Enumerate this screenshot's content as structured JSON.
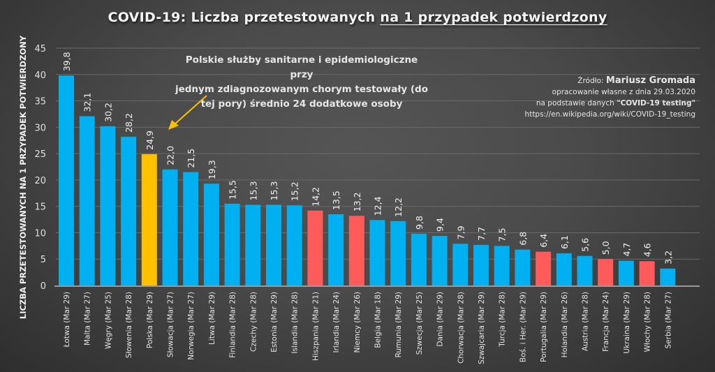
{
  "chart_data": {
    "type": "bar",
    "title_prefix": "COVID-19: Liczba przetestowanych ",
    "title_underlined": "na 1 przypadek potwierdzony",
    "ylabel": "LICZBA PRZETESTOWANYCH NA 1 PRZYPADEK POTWIERDZONY",
    "xlabel": "",
    "ylim": [
      0,
      45
    ],
    "yticks": [
      0,
      5,
      10,
      15,
      20,
      25,
      30,
      35,
      40,
      45
    ],
    "grid": true,
    "categories": [
      "Łotwa (Mar 29)",
      "Malta (Mar 27)",
      "Węgry (Mar 25)",
      "Słowenia (Mar 28)",
      "Polska (Mar 29)",
      "Słowacja (Mar 27)",
      "Norwegia (Mar 27)",
      "Litwa (Mar 29)",
      "Finlandia (Mar 28)",
      "Czechy (Mar 28)",
      "Estonia (Mar 29)",
      "Islandia (Mar 28)",
      "Hiszpania (Mar 21)",
      "Irlandia (Mar 24)",
      "Niemcy (Mar 26)",
      "Belgia (Mar 18)",
      "Rumunia (Mar 29)",
      "Szwecja (Mar 25)",
      "Dania (Mar 29)",
      "Chorwacja (Mar 28)",
      "Szwajcaria (Mar 29)",
      "Turcja (Mar 28)",
      "Boś. i Her. (Mar 29)",
      "Portugalia (Mar 29)",
      "Holandia (Mar 26)",
      "Austria (Mar 28)",
      "Francja (Mar 24)",
      "Ukraina (Mar 29)",
      "Włochy (Mar 28)",
      "Serbia (Mar 27)"
    ],
    "values": [
      39.8,
      32.1,
      30.2,
      28.2,
      24.9,
      22.0,
      21.5,
      19.3,
      15.5,
      15.3,
      15.3,
      15.2,
      14.2,
      13.5,
      13.2,
      12.4,
      12.2,
      9.8,
      9.4,
      7.9,
      7.7,
      7.5,
      6.8,
      6.4,
      6.1,
      5.6,
      5.0,
      4.7,
      4.6,
      3.2
    ],
    "labels": [
      "39,8",
      "32,1",
      "30,2",
      "28,2",
      "24,9",
      "22,0",
      "21,5",
      "19,3",
      "15,5",
      "15,3",
      "15,3",
      "15,2",
      "14,2",
      "13,5",
      "13,2",
      "12,4",
      "12,2",
      "9,8",
      "9,4",
      "7,9",
      "7,7",
      "7,5",
      "6,8",
      "6,4",
      "6,1",
      "5,6",
      "5,0",
      "4,7",
      "4,6",
      "3,2"
    ],
    "bar_groups": [
      "default",
      "default",
      "default",
      "default",
      "highlight",
      "default",
      "default",
      "default",
      "default",
      "default",
      "default",
      "default",
      "hard-hit",
      "default",
      "hard-hit",
      "default",
      "default",
      "default",
      "default",
      "default",
      "default",
      "default",
      "default",
      "hard-hit",
      "default",
      "default",
      "hard-hit",
      "default",
      "hard-hit",
      "default"
    ],
    "colors": {
      "default": "#00b0f0",
      "highlight": "#ffc000",
      "hard-hit": "#ff5b5b",
      "arrow": "#ffc000",
      "grid": "#6a6a6a"
    }
  },
  "annotation": {
    "lines": [
      "Polskie służby sanitarne i epidemiologiczne przy",
      "jednym zdiagnozowanym chorym testowały (do",
      "tej pory) średnio 24 dodatkowe osoby"
    ]
  },
  "source": {
    "label": "Źródło: ",
    "author": "Mariusz Gromada",
    "line2": "opracowanie własne z dnia 29.03.2020",
    "line3_prefix": "na podstawie danych ",
    "line3_bold": "\"COVID-19 testing\"",
    "line4": "https://en.wikipedia.org/wiki/COVID-19_testing"
  }
}
